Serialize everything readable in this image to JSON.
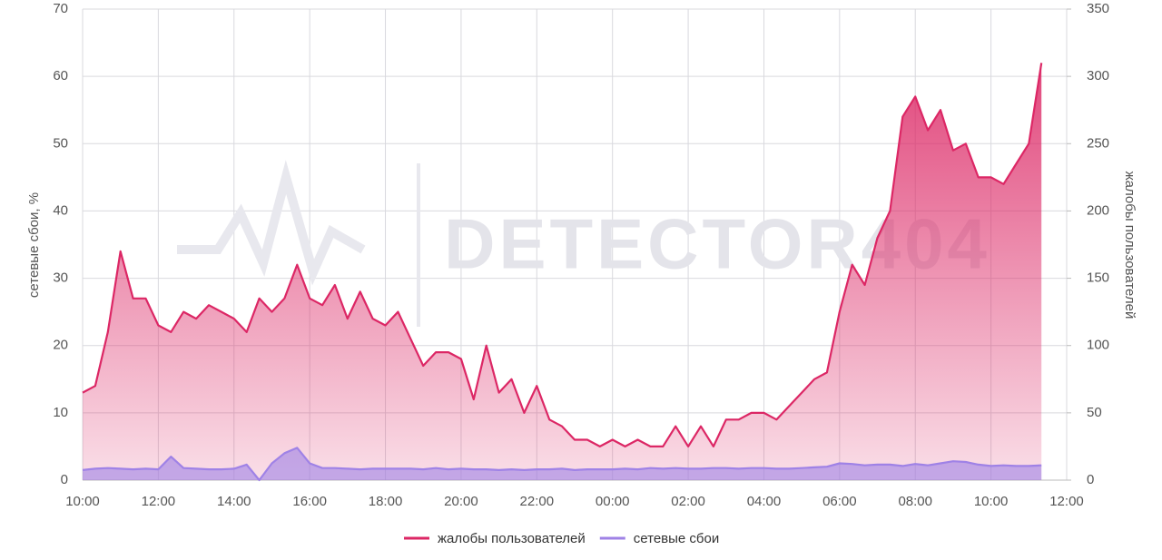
{
  "chart_data": {
    "type": "line",
    "watermark": "DETECTOR404",
    "y_label": "сетевые сбои, %",
    "y2_label": "жалобы пользователей",
    "x": [
      "10:00",
      "10:20",
      "10:40",
      "11:00",
      "11:20",
      "11:40",
      "12:00",
      "12:20",
      "12:40",
      "13:00",
      "13:20",
      "13:40",
      "14:00",
      "14:20",
      "14:40",
      "15:00",
      "15:20",
      "15:40",
      "16:00",
      "16:20",
      "16:40",
      "17:00",
      "17:20",
      "17:40",
      "18:00",
      "18:20",
      "18:40",
      "19:00",
      "19:20",
      "19:40",
      "20:00",
      "20:20",
      "20:40",
      "21:00",
      "21:20",
      "21:40",
      "22:00",
      "22:20",
      "22:40",
      "23:00",
      "23:20",
      "23:40",
      "00:00",
      "00:20",
      "00:40",
      "01:00",
      "01:20",
      "01:40",
      "02:00",
      "02:20",
      "02:40",
      "03:00",
      "03:20",
      "03:40",
      "04:00",
      "04:20",
      "04:40",
      "05:00",
      "05:20",
      "05:40",
      "06:00",
      "06:20",
      "06:40",
      "07:00",
      "07:20",
      "07:40",
      "08:00",
      "08:20",
      "08:40",
      "09:00",
      "09:20",
      "09:40",
      "10:00",
      "10:20",
      "10:40",
      "11:00",
      "11:20",
      "11:40",
      "12:00"
    ],
    "series": [
      {
        "name": "жалобы пользователей",
        "color": "#dc2765",
        "axis": "y2",
        "values": [
          65,
          70,
          110,
          170,
          135,
          135,
          115,
          110,
          125,
          120,
          130,
          125,
          120,
          110,
          135,
          125,
          135,
          160,
          135,
          130,
          145,
          120,
          140,
          120,
          115,
          125,
          105,
          85,
          95,
          95,
          90,
          60,
          100,
          65,
          75,
          50,
          70,
          45,
          40,
          30,
          30,
          25,
          30,
          25,
          30,
          25,
          25,
          40,
          25,
          40,
          25,
          45,
          45,
          50,
          50,
          45,
          55,
          65,
          75,
          80,
          125,
          160,
          145,
          180,
          200,
          270,
          285,
          260,
          275,
          245,
          250,
          225,
          225,
          220,
          235,
          250,
          310,
          null,
          null
        ]
      },
      {
        "name": "сетевые сбои",
        "color": "#9f82e6",
        "values": [
          1.5,
          1.7,
          1.8,
          1.7,
          1.6,
          1.7,
          1.6,
          3.5,
          1.8,
          1.7,
          1.6,
          1.6,
          1.7,
          2.3,
          0,
          2.5,
          4,
          4.8,
          2.5,
          1.8,
          1.8,
          1.7,
          1.6,
          1.7,
          1.7,
          1.7,
          1.7,
          1.6,
          1.8,
          1.6,
          1.7,
          1.6,
          1.6,
          1.5,
          1.6,
          1.5,
          1.6,
          1.6,
          1.7,
          1.5,
          1.6,
          1.6,
          1.6,
          1.7,
          1.6,
          1.8,
          1.7,
          1.8,
          1.7,
          1.7,
          1.8,
          1.8,
          1.7,
          1.8,
          1.8,
          1.7,
          1.7,
          1.8,
          1.9,
          2.0,
          2.5,
          2.4,
          2.2,
          2.3,
          2.3,
          2.1,
          2.4,
          2.2,
          2.5,
          2.8,
          2.7,
          2.3,
          2.1,
          2.2,
          2.1,
          2.1,
          2.2,
          null,
          null
        ]
      }
    ],
    "ylim": [
      0,
      70
    ],
    "yticks": [
      0,
      10,
      20,
      30,
      40,
      50,
      60,
      70
    ],
    "y2lim": [
      0,
      350
    ],
    "y2ticks": [
      0,
      50,
      100,
      150,
      200,
      250,
      300,
      350
    ],
    "grid": true,
    "legend": "bottom"
  }
}
